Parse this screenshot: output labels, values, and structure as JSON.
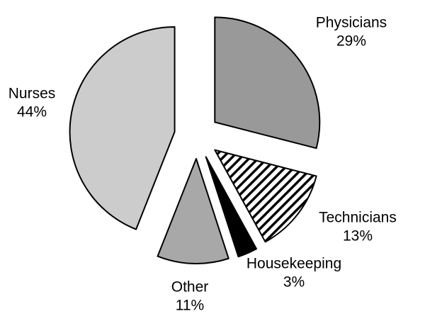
{
  "chart_data": {
    "type": "pie",
    "categories": [
      "Physicians",
      "Technicians",
      "Housekeeping",
      "Other",
      "Nurses"
    ],
    "values": [
      29,
      13,
      3,
      11,
      44
    ],
    "value_labels": [
      "29%",
      "13%",
      "3%",
      "11%",
      "44%"
    ],
    "colors": [
      "#999999",
      "#ffffff",
      "#000000",
      "#a8a8a8",
      "#cccccc"
    ],
    "hatch": [
      false,
      true,
      false,
      false,
      false
    ],
    "exploded": true
  }
}
